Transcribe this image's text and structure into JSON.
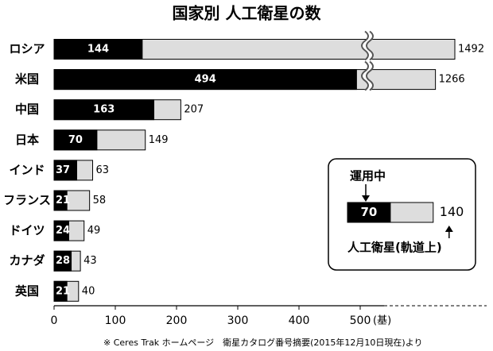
{
  "chart_data": {
    "type": "bar",
    "orientation": "horizontal",
    "title": "国家別 人工衛星の数",
    "categories": [
      "ロシア",
      "米国",
      "中国",
      "日本",
      "インド",
      "フランス",
      "ドイツ",
      "カナダ",
      "英国"
    ],
    "series": [
      {
        "name": "運用中",
        "color": "#000000",
        "values": [
          144,
          494,
          163,
          70,
          37,
          21,
          24,
          28,
          21
        ]
      },
      {
        "name": "人工衛星(軌道上)",
        "color": "#dddddd",
        "values": [
          1492,
          1266,
          207,
          149,
          63,
          58,
          49,
          43,
          40
        ]
      }
    ],
    "xlim": [
      0,
      500
    ],
    "xticks": [
      0,
      100,
      200,
      300,
      400,
      500
    ],
    "x_unit": "(基)",
    "axis_break": true,
    "legend": {
      "example_values": [
        70,
        140
      ]
    },
    "footnote": "※ Ceres Trak ホームページ　衛星カタログ番号摘要(2015年12月10日現在)より"
  }
}
